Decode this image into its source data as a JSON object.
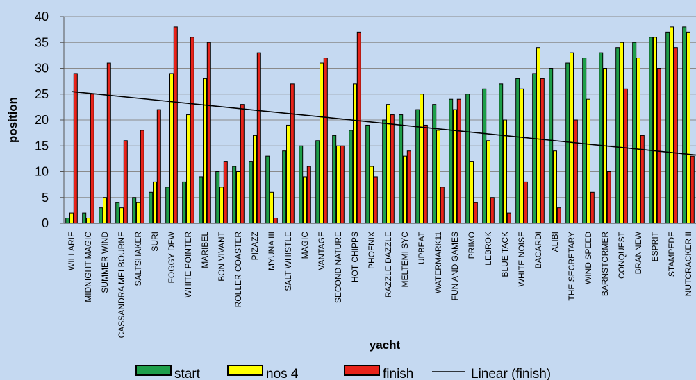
{
  "chart_data": {
    "type": "bar",
    "title": "",
    "xlabel": "yacht",
    "ylabel": "position",
    "ylim": [
      0,
      40
    ],
    "yticks": [
      0,
      5,
      10,
      15,
      20,
      25,
      30,
      35,
      40
    ],
    "grid": true,
    "legend": "bottom",
    "categories": [
      "WILLARIE",
      "MIDNIGHT MAGIC",
      "SUMMER WIND",
      "CASSANDRA MELBOURNE",
      "SALTSHAKER",
      "SURI",
      "FOGGY DEW",
      "WHITE POINTER",
      "MARIBEL",
      "BON VIVANT",
      "ROLLER COASTER",
      "PIZAZZ",
      "MYUNA III",
      "SALT WHISTLE",
      "MAGIC",
      "VANTAGE",
      "SECOND NATURE",
      "HOT CHIPPS",
      "PHOENIX",
      "RAZZLE DAZZLE",
      "MELTEMI SYC",
      "UPBEAT",
      "WATERMARK11",
      "FUN AND GAMES",
      "PRIMO",
      "LEBROK",
      "BLUE TACK",
      "WHITE NOISE",
      "BACARDI",
      "ALIBI",
      "THE SECRETARY",
      "WIND SPEED",
      "BARNSTORMER",
      "CONQUEST",
      "BRANNEW",
      "ESPRIT",
      "STAMPEDE",
      "NUTCRACKER II"
    ],
    "series": [
      {
        "name": "start",
        "color": "#1e9e4a",
        "values": [
          1,
          2,
          3,
          4,
          5,
          6,
          7,
          8,
          9,
          10,
          11,
          12,
          13,
          14,
          15,
          16,
          17,
          18,
          19,
          20,
          21,
          22,
          23,
          24,
          25,
          26,
          27,
          28,
          29,
          30,
          31,
          32,
          33,
          34,
          35,
          36,
          37,
          38
        ]
      },
      {
        "name": "nos 4",
        "color": "#ffff00",
        "values": [
          2,
          1,
          5,
          3,
          4,
          8,
          29,
          21,
          28,
          7,
          10,
          17,
          6,
          19,
          9,
          31,
          15,
          27,
          11,
          23,
          13,
          25,
          18,
          22,
          12,
          16,
          20,
          26,
          34,
          14,
          33,
          24,
          30,
          35,
          32,
          36,
          38,
          37
        ]
      },
      {
        "name": "finish",
        "color": "#e8231a",
        "values": [
          29,
          25,
          31,
          16,
          18,
          22,
          38,
          36,
          35,
          12,
          23,
          33,
          1,
          27,
          11,
          32,
          15,
          37,
          9,
          21,
          14,
          19,
          7,
          24,
          4,
          5,
          2,
          8,
          28,
          3,
          20,
          6,
          10,
          26,
          17,
          30,
          34,
          13
        ]
      }
    ],
    "trendline": {
      "name": "Linear (finish)",
      "start": 25.5,
      "end": 13.2
    }
  }
}
